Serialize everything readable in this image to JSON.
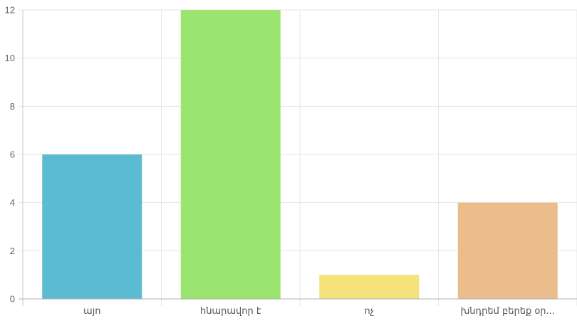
{
  "chart_data": {
    "type": "bar",
    "categories": [
      "այո",
      "հնարավոր է",
      "ոչ",
      "խնդրեմ բերեք օր..."
    ],
    "values": [
      6,
      12,
      1,
      4
    ],
    "colors": [
      "#5bbcd1",
      "#9ae46f",
      "#f5e27a",
      "#ebbc8c"
    ],
    "ylim": [
      0,
      12
    ],
    "yticks": [
      0,
      2,
      4,
      6,
      8,
      10,
      12
    ],
    "grid": true,
    "title": "",
    "xlabel": "",
    "ylabel": ""
  }
}
